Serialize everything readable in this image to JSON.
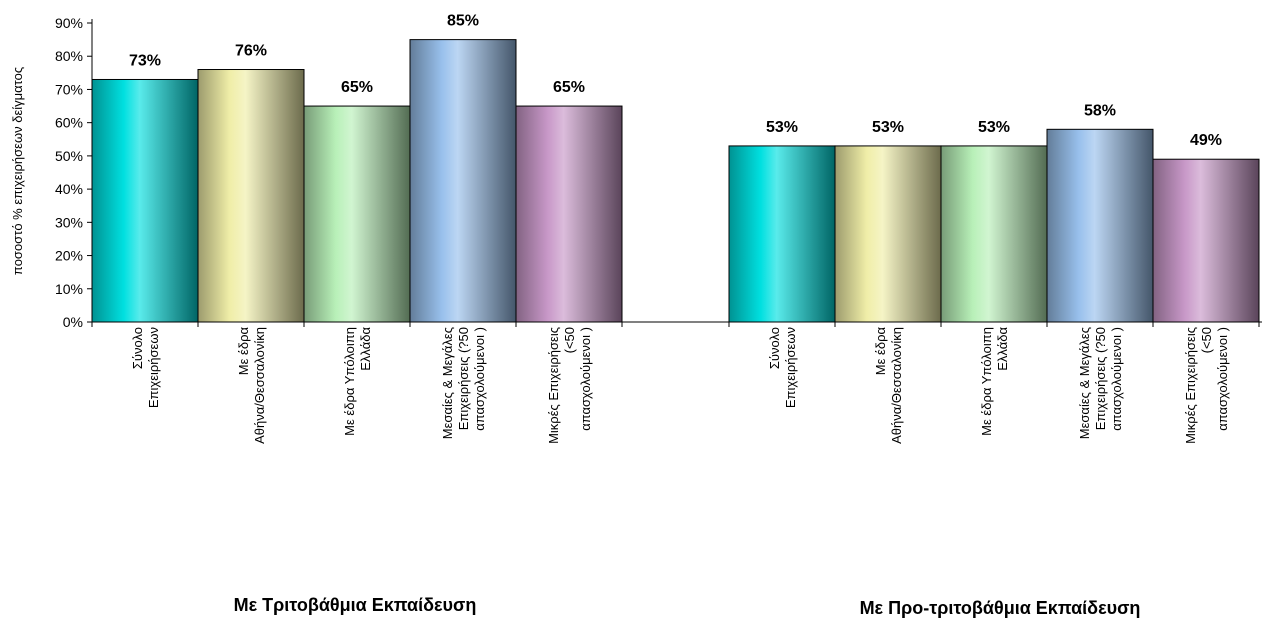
{
  "chart_data": {
    "type": "bar",
    "ylabel": "ποσοστό % επιχειρήσεων δείγματος",
    "ylim": [
      0,
      90
    ],
    "yticks": [
      "0%",
      "10%",
      "20%",
      "30%",
      "40%",
      "50%",
      "60%",
      "70%",
      "80%",
      "90%"
    ],
    "grid": false,
    "categories": [
      [
        "Σύνολο",
        "Επιχειρήσεων"
      ],
      [
        "Με έδρα",
        "Αθήνα/Θεσσαλονίκη"
      ],
      [
        "Με έδρα Υπόλοιπη",
        "Ελλάδα"
      ],
      [
        "Μεσαίες & Μεγάλες",
        "Επιχειρήσεις (?50",
        "απασχολούμενοι )"
      ],
      [
        "Μικρές Επιχειρήσεις",
        "(<50",
        "απασχολούμενοι )"
      ]
    ],
    "colors": [
      "#00e0e0",
      "#f0eea8",
      "#b8f0b8",
      "#98c0ec",
      "#c898c8"
    ],
    "groups": [
      {
        "label": "Με Τριτοβάθμια Εκπαίδευση",
        "values": [
          73,
          76,
          65,
          85,
          65
        ],
        "data_labels": [
          "73%",
          "76%",
          "65%",
          "85%",
          "65%"
        ]
      },
      {
        "label": "Με Προ-τριτοβάθμια Εκπαίδευση",
        "values": [
          53,
          53,
          53,
          58,
          49
        ],
        "data_labels": [
          "53%",
          "53%",
          "53%",
          "58%",
          "49%"
        ]
      }
    ]
  }
}
